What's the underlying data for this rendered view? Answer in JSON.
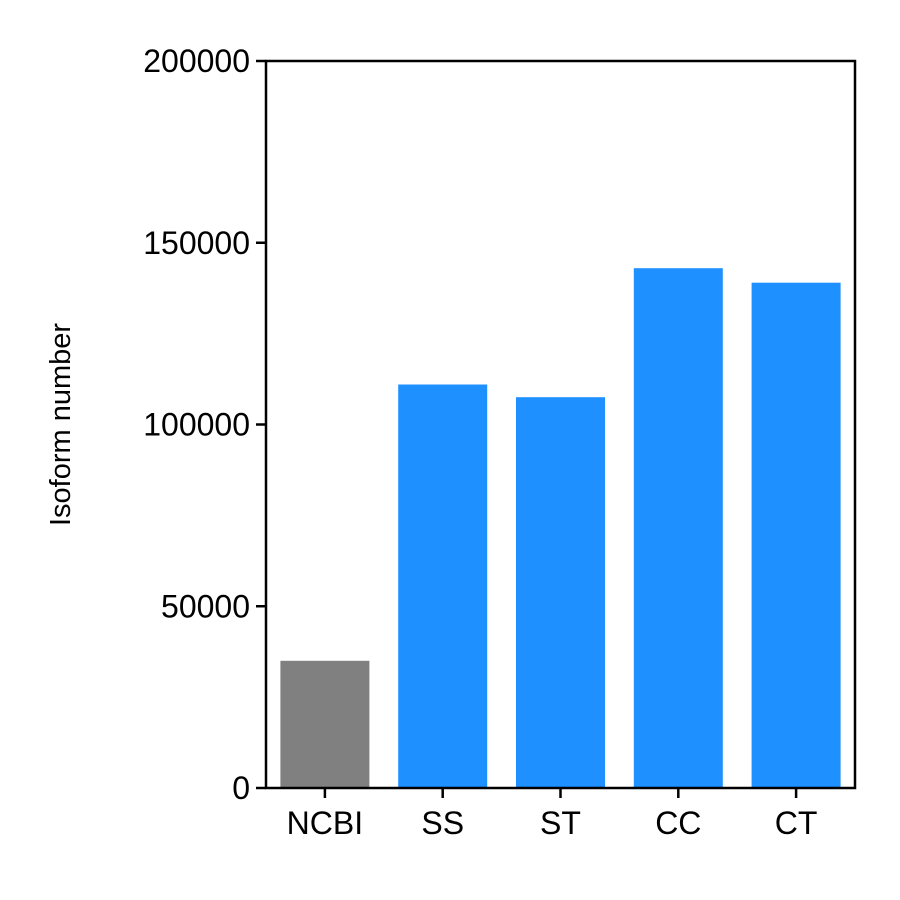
{
  "chart_data": {
    "type": "bar",
    "categories": [
      "NCBI",
      "SS",
      "ST",
      "CC",
      "CT"
    ],
    "values": [
      35000,
      111000,
      107500,
      143000,
      139000
    ],
    "bar_colors": [
      "#808080",
      "#1e90ff",
      "#1e90ff",
      "#1e90ff",
      "#1e90ff"
    ],
    "xlabel": "",
    "ylabel": "Isoform number",
    "ylim": [
      0,
      200000
    ],
    "yticks": [
      0,
      50000,
      100000,
      150000,
      200000
    ],
    "ytick_labels": [
      "0",
      "50000",
      "100000",
      "150000",
      "200000"
    ],
    "grid": false,
    "legend": "none"
  }
}
